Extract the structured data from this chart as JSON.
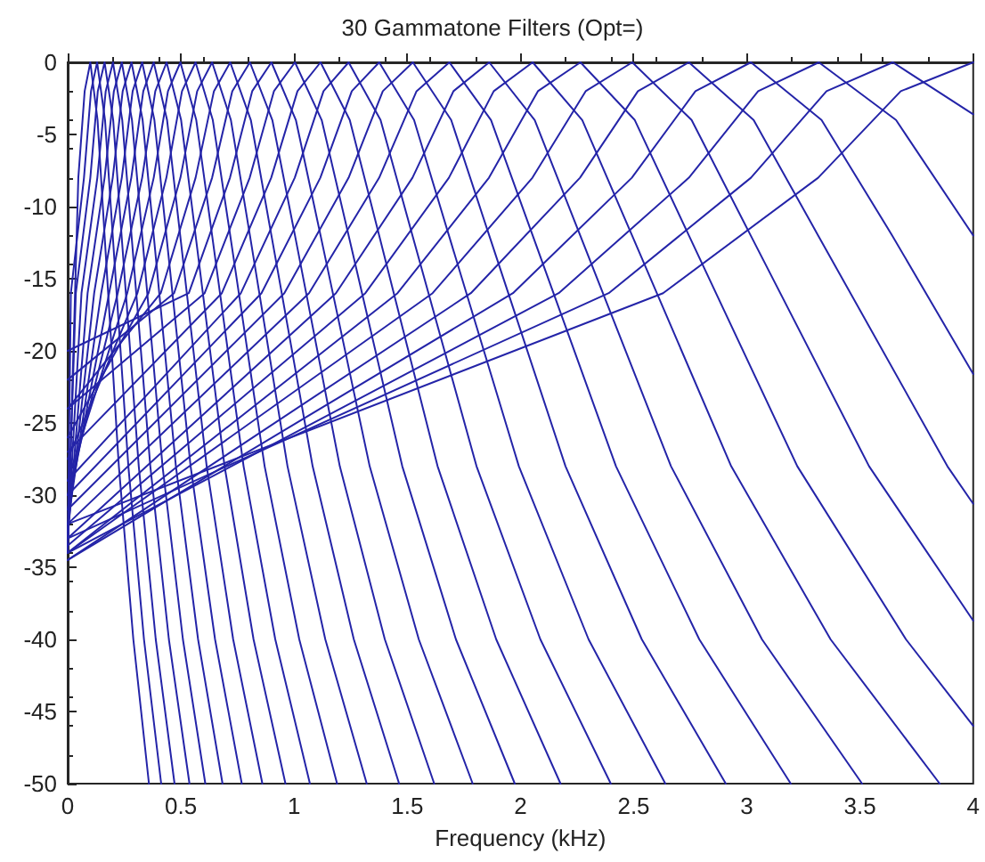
{
  "chart_data": {
    "type": "line",
    "title": "30 Gammatone Filters (Opt=)",
    "xlabel": "Frequency (kHz)",
    "xlim": [
      0,
      4
    ],
    "xticks": [
      0,
      0.5,
      1,
      1.5,
      2,
      2.5,
      3,
      3.5,
      4
    ],
    "ylim": [
      -50,
      0
    ],
    "yticks": [
      -50,
      -45,
      -40,
      -35,
      -30,
      -25,
      -20,
      -15,
      -10,
      -5,
      0
    ],
    "grid": false,
    "marker": "none",
    "line_style": "solid",
    "series": [
      {
        "color": "#2424a8",
        "x": [
          0,
          0.047,
          0.075,
          0.1,
          0.132,
          0.163,
          0.226,
          0.29,
          0.359
        ],
        "values": [
          -34,
          -8,
          -2,
          0,
          -4,
          -12,
          -28,
          -40,
          -50
        ]
      },
      {
        "color": "#2424a8",
        "x": [
          0,
          0.014,
          0.072,
          0.103,
          0.13,
          0.165,
          0.199,
          0.268,
          0.337,
          0.413
        ],
        "values": [
          -34,
          -16,
          -8,
          -2,
          0,
          -4,
          -12,
          -28,
          -40,
          -50
        ]
      },
      {
        "color": "#2424a8",
        "x": [
          0,
          0.036,
          0.1,
          0.133,
          0.163,
          0.201,
          0.238,
          0.314,
          0.389,
          0.472
        ],
        "values": [
          -33.5,
          -16,
          -8,
          -2,
          0,
          -4,
          -12,
          -28,
          -40,
          -50
        ]
      },
      {
        "color": "#2424a8",
        "x": [
          0,
          0.061,
          0.131,
          0.168,
          0.2,
          0.241,
          0.282,
          0.365,
          0.447,
          0.538
        ],
        "values": [
          -33,
          -16,
          -8,
          -2,
          0,
          -4,
          -12,
          -28,
          -40,
          -50
        ]
      },
      {
        "color": "#2424a8",
        "x": [
          0,
          0.088,
          0.163,
          0.204,
          0.239,
          0.284,
          0.329,
          0.419,
          0.509,
          0.608
        ],
        "values": [
          -33,
          -16,
          -8,
          -2,
          0,
          -4,
          -12,
          -28,
          -40,
          -50
        ]
      },
      {
        "color": "#2424a8",
        "x": [
          0,
          0.117,
          0.199,
          0.243,
          0.282,
          0.331,
          0.38,
          0.478,
          0.576,
          0.684
        ],
        "values": [
          -32.5,
          -16,
          -8,
          -2,
          0,
          -4,
          -12,
          -28,
          -40,
          -50
        ]
      },
      {
        "color": "#2424a8",
        "x": [
          0,
          0.148,
          0.239,
          0.287,
          0.329,
          0.383,
          0.436,
          0.543,
          0.651,
          0.769
        ],
        "values": [
          -32,
          -16,
          -8,
          -2,
          0,
          -4,
          -12,
          -28,
          -40,
          -50
        ]
      },
      {
        "color": "#2424a8",
        "x": [
          0,
          0.183,
          0.281,
          0.334,
          0.38,
          0.439,
          0.497,
          0.614,
          0.731,
          0.86
        ],
        "values": [
          -31,
          -16,
          -8,
          -2,
          0,
          -4,
          -12,
          -28,
          -40,
          -50
        ]
      },
      {
        "color": "#2424a8",
        "x": [
          0,
          0.221,
          0.329,
          0.387,
          0.437,
          0.501,
          0.565,
          0.693,
          0.821,
          0.962
        ],
        "values": [
          -30,
          -16,
          -8,
          -2,
          0,
          -4,
          -12,
          -28,
          -40,
          -50
        ]
      },
      {
        "color": "#2424a8",
        "x": [
          0,
          0.263,
          0.38,
          0.443,
          0.498,
          0.568,
          0.638,
          0.777,
          0.917,
          1.07
        ],
        "values": [
          -29,
          -16,
          -8,
          -2,
          0,
          -4,
          -12,
          -28,
          -40,
          -50
        ]
      },
      {
        "color": "#2424a8",
        "x": [
          0,
          0.308,
          0.436,
          0.505,
          0.565,
          0.641,
          0.718,
          0.87,
          1.023,
          1.19
        ],
        "values": [
          -27.5,
          -16,
          -8,
          -2,
          0,
          -4,
          -12,
          -28,
          -40,
          -50
        ]
      },
      {
        "color": "#2424a8",
        "x": [
          0,
          0.357,
          0.498,
          0.572,
          0.638,
          0.721,
          0.805,
          0.971,
          1.138,
          1.321
        ],
        "values": [
          -26,
          -16,
          -8,
          -2,
          0,
          -4,
          -12,
          -28,
          -40,
          -50
        ]
      },
      {
        "color": "#2424a8",
        "x": [
          0,
          0.411,
          0.565,
          0.646,
          0.718,
          0.809,
          0.9,
          1.082,
          1.264,
          1.464
        ],
        "values": [
          -24,
          -16,
          -8,
          -2,
          0,
          -4,
          -12,
          -28,
          -40,
          -50
        ]
      },
      {
        "color": "#2424a8",
        "x": [
          0,
          0.47,
          0.638,
          0.727,
          0.805,
          0.904,
          1.004,
          1.202,
          1.401,
          1.619
        ],
        "values": [
          -22,
          -16,
          -8,
          -2,
          0,
          -4,
          -12,
          -28,
          -40,
          -50
        ]
      },
      {
        "color": "#2424a8",
        "x": [
          0,
          0.535,
          0.717,
          0.815,
          0.9,
          1.008,
          1.117,
          1.334,
          1.551,
          1.789
        ],
        "values": [
          -20,
          -16,
          -8,
          -2,
          0,
          -4,
          -12,
          -28,
          -40,
          -50
        ]
      },
      {
        "color": "#2424a8",
        "x": [
          0,
          0.605,
          0.804,
          0.911,
          1.004,
          1.122,
          1.241,
          1.478,
          1.715,
          1.975
        ],
        "values": [
          -24,
          -16,
          -8,
          -2,
          0,
          -4,
          -12,
          -28,
          -40,
          -50
        ]
      },
      {
        "color": "#2424a8",
        "x": [
          0,
          0.681,
          0.899,
          1.015,
          1.117,
          1.246,
          1.376,
          1.634,
          1.893,
          2.177
        ],
        "values": [
          -27,
          -16,
          -8,
          -2,
          0,
          -4,
          -12,
          -28,
          -40,
          -50
        ]
      },
      {
        "color": "#2424a8",
        "x": [
          0,
          0.765,
          1.003,
          1.13,
          1.241,
          1.382,
          1.523,
          1.806,
          2.088,
          2.399
        ],
        "values": [
          -29,
          -16,
          -8,
          -2,
          0,
          -4,
          -12,
          -28,
          -40,
          -50
        ]
      },
      {
        "color": "#2424a8",
        "x": [
          0,
          0.856,
          1.116,
          1.255,
          1.376,
          1.53,
          1.684,
          1.993,
          2.301,
          2.64
        ],
        "values": [
          -30,
          -16,
          -8,
          -2,
          0,
          -4,
          -12,
          -28,
          -40,
          -50
        ]
      },
      {
        "color": "#2424a8",
        "x": [
          0,
          0.957,
          1.241,
          1.392,
          1.525,
          1.694,
          1.862,
          2.199,
          2.536,
          2.907
        ],
        "values": [
          -31,
          -16,
          -8,
          -2,
          0,
          -4,
          -12,
          -28,
          -40,
          -50
        ]
      },
      {
        "color": "#2424a8",
        "x": [
          0,
          1.066,
          1.376,
          1.541,
          1.686,
          1.87,
          2.054,
          2.422,
          2.79,
          3.194
        ],
        "values": [
          -32,
          -16,
          -8,
          -2,
          0,
          -4,
          -12,
          -28,
          -40,
          -50
        ]
      },
      {
        "color": "#2424a8",
        "x": [
          0,
          1.185,
          1.523,
          1.704,
          1.862,
          2.063,
          2.264,
          2.665,
          3.067,
          3.509
        ],
        "values": [
          -33,
          -16,
          -8,
          -2,
          0,
          -4,
          -12,
          -28,
          -40,
          -50
        ]
      },
      {
        "color": "#2424a8",
        "x": [
          0,
          1.315,
          1.684,
          1.882,
          2.054,
          2.273,
          2.493,
          2.931,
          3.37,
          3.852
        ],
        "values": [
          -33.5,
          -16,
          -8,
          -2,
          0,
          -4,
          -12,
          -28,
          -40,
          -50
        ]
      },
      {
        "color": "#2424a8",
        "x": [
          0,
          1.457,
          1.861,
          2.077,
          2.265,
          2.505,
          2.744,
          3.223,
          3.703,
          4
        ],
        "values": [
          -34,
          -16,
          -8,
          -2,
          0,
          -4,
          -12,
          -28,
          -40,
          -46
        ]
      },
      {
        "color": "#2424a8",
        "x": [
          0,
          1.612,
          2.053,
          2.288,
          2.494,
          2.756,
          3.017,
          3.54,
          4
        ],
        "values": [
          -34,
          -16,
          -8,
          -2,
          0,
          -4,
          -12,
          -28,
          -38.7
        ]
      },
      {
        "color": "#2424a8",
        "x": [
          0,
          1.781,
          2.263,
          2.519,
          2.744,
          3.03,
          3.315,
          3.886,
          4
        ],
        "values": [
          -34.5,
          -16,
          -8,
          -2,
          0,
          -4,
          -12,
          -28,
          -30.6
        ]
      },
      {
        "color": "#2424a8",
        "x": [
          0,
          1.967,
          2.492,
          2.773,
          3.018,
          3.33,
          3.642,
          4
        ],
        "values": [
          -34.5,
          -16,
          -8,
          -2,
          0,
          -4,
          -12,
          -21.6
        ]
      },
      {
        "color": "#2424a8",
        "x": [
          0,
          2.169,
          2.744,
          3.05,
          3.318,
          3.659,
          4
        ],
        "values": [
          -34,
          -16,
          -8,
          -2,
          0,
          -4,
          -12
        ]
      },
      {
        "color": "#2424a8",
        "x": [
          0,
          2.39,
          3.018,
          3.352,
          3.645,
          4
        ],
        "values": [
          -33,
          -16,
          -8,
          -2,
          0,
          -3.6
        ]
      },
      {
        "color": "#2424a8",
        "x": [
          0,
          2.63,
          3.315,
          3.68,
          4
        ],
        "values": [
          -32,
          -16,
          -8,
          -2,
          0
        ]
      }
    ]
  }
}
